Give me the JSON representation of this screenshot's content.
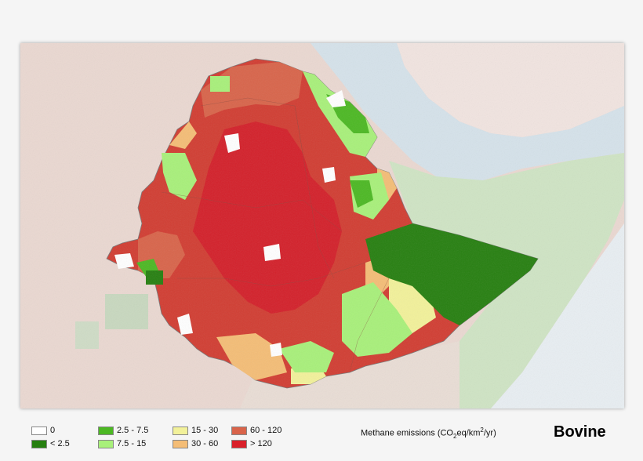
{
  "map": {
    "species": "Bovine",
    "legend_title_prefix": "Methane emissions (CO",
    "legend_title_sub": "2",
    "legend_title_mid": "eq/km",
    "legend_title_sup": "2",
    "legend_title_suffix": "/yr)",
    "legend": [
      {
        "label": "0",
        "color": "#ffffff"
      },
      {
        "label": "< 2.5",
        "color": "#267f10"
      },
      {
        "label": "2.5 - 7.5",
        "color": "#4cb823"
      },
      {
        "label": "7.5 - 15",
        "color": "#a8f07a"
      },
      {
        "label": "15 - 30",
        "color": "#f2f19a"
      },
      {
        "label": "30 - 60",
        "color": "#f4bd76"
      },
      {
        "label": "60 - 120",
        "color": "#d9644a"
      },
      {
        "label": "> 120",
        "color": "#d9202a"
      }
    ]
  }
}
